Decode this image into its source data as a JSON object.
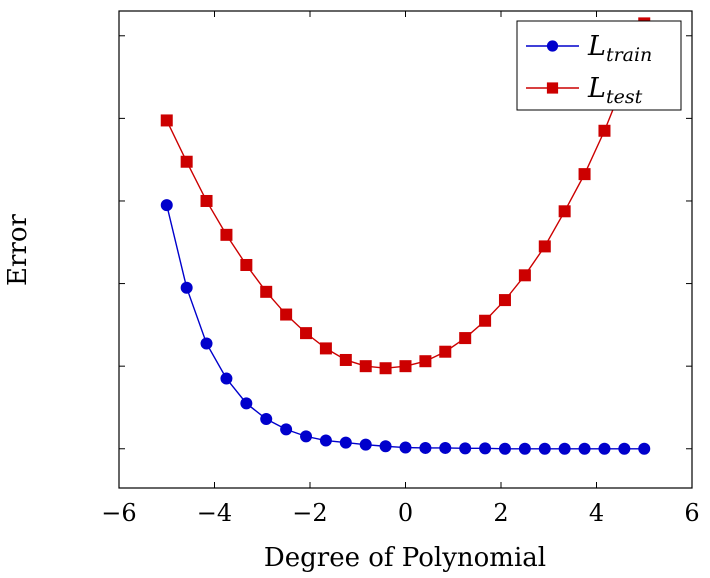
{
  "chart_data": {
    "type": "line",
    "xlabel": "Degree of Polynomial",
    "ylabel": "Error",
    "xlim": [
      -6,
      6
    ],
    "ylim": [
      -0.95,
      10.6
    ],
    "x_ticks": [
      -6,
      -4,
      -2,
      0,
      2,
      4,
      6
    ],
    "x_tick_labels": [
      "−6",
      "−4",
      "−2",
      "0",
      "2",
      "4",
      "6"
    ],
    "y_ticks": [
      0,
      2,
      4,
      6,
      8,
      10
    ],
    "y_tick_labels_visible": false,
    "grid": false,
    "legend_position": "top-right",
    "x": [
      -5,
      -4.583,
      -4.167,
      -3.75,
      -3.333,
      -2.917,
      -2.5,
      -2.083,
      -1.667,
      -1.25,
      -0.833,
      -0.417,
      0,
      0.417,
      0.833,
      1.25,
      1.667,
      2.083,
      2.5,
      2.917,
      3.333,
      3.75,
      4.167,
      4.583,
      5
    ],
    "series": [
      {
        "name": "train",
        "label_main": "L",
        "label_sub": "train",
        "color": "#0000cc",
        "marker": "circle",
        "values": [
          5.9,
          3.9,
          2.55,
          1.7,
          1.1,
          0.72,
          0.47,
          0.3,
          0.2,
          0.15,
          0.1,
          0.06,
          0.03,
          0.02,
          0.02,
          0.01,
          0.01,
          0.0,
          0.0,
          0.0,
          0.0,
          0.0,
          0.0,
          0.0,
          0.0
        ]
      },
      {
        "name": "test",
        "label_main": "L",
        "label_sub": "test",
        "color": "#cc0000",
        "marker": "square",
        "values": [
          7.95,
          6.95,
          6.0,
          5.18,
          4.45,
          3.8,
          3.25,
          2.8,
          2.43,
          2.15,
          2.0,
          1.95,
          2.0,
          2.12,
          2.35,
          2.68,
          3.1,
          3.6,
          4.2,
          4.9,
          5.75,
          6.65,
          7.7,
          8.9,
          10.3
        ]
      }
    ]
  }
}
